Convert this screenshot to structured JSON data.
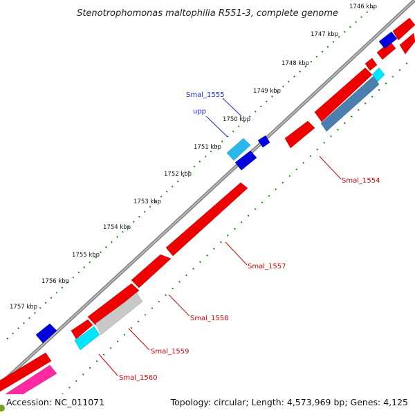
{
  "title": "Stenotrophomonas maltophilia R551-3, complete genome",
  "footer": {
    "accession": "Accession: NC_011071",
    "topology": "Topology: circular; Length: 4,573,969 bp; Genes: 4,125"
  },
  "ticks": [
    "1746 kbp",
    "1747 kbp",
    "1748 kbp",
    "1749 kbp",
    "1750 kbp",
    "1751 kbp",
    "1752 kbp",
    "1753 kbp",
    "1754 kbp",
    "1755 kbp",
    "1756 kbp",
    "1757 kbp"
  ],
  "gene_labels": {
    "smal_1555": "Smal_1555",
    "upp": "upp",
    "smal_1554": "Smal_1554",
    "smal_1557": "Smal_1557",
    "smal_1558": "Smal_1558",
    "smal_1559": "Smal_1559",
    "smal_1560": "Smal_1560"
  },
  "colors": {
    "forward_cds": "#ee0000",
    "reverse_cds": "#0000dd",
    "cyan": "#00e5ff",
    "light_blue": "#29b9e8",
    "steel_blue": "#4a7fb0",
    "gray": "#c8c8c8",
    "pink": "#ff2aa0",
    "tick_green": "#0c8a0c",
    "backbone": "#8a8a8a"
  }
}
